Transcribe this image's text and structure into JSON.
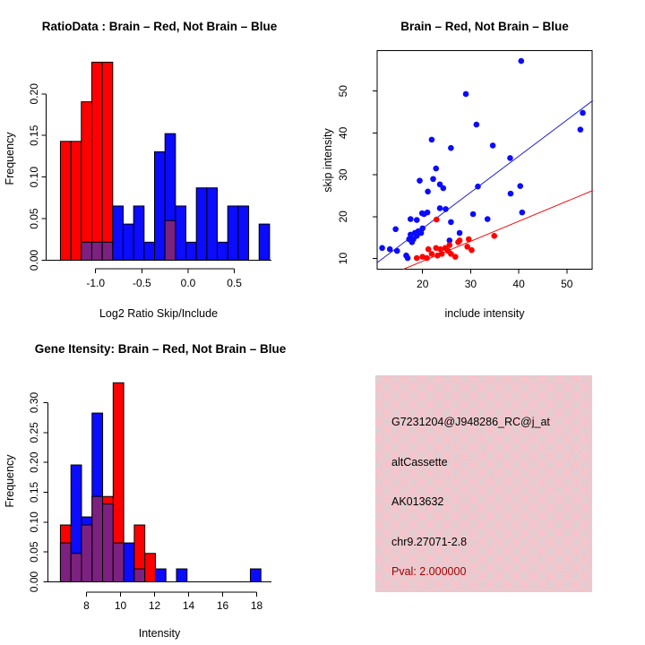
{
  "colors": {
    "red": "#ff0000",
    "blue": "#0b0bff",
    "overlap_purple": "#7c2180",
    "line_blue": "#2222cc",
    "line_red": "#ee1111",
    "bar_stroke": "#000000",
    "info_bg_pink": "#ffb6c1",
    "info_bg_gray": "#dadada",
    "pval_dark_red": "#990000"
  },
  "chart_data": [
    {
      "id": "ratio_hist",
      "type": "bar",
      "title": "RatioData : Brain – Red, Not Brain – Blue",
      "xlabel": "Log2 Ratio Skip/Include",
      "ylabel": "Frequency",
      "bin_start": -1.38,
      "bin_width": 0.113,
      "x_ticks": [
        -1.0,
        -0.5,
        0.0,
        0.5
      ],
      "x_tick_labels": [
        "-1.0",
        "-0.5",
        "0.0",
        "0.5"
      ],
      "y_ticks": [
        0.0,
        0.05,
        0.1,
        0.15,
        0.2
      ],
      "y_tick_labels": [
        "0.00",
        "0.05",
        "0.10",
        "0.15",
        "0.20"
      ],
      "ylim": [
        0,
        0.24
      ],
      "legend_note": "Brain = red histogram, Not Brain = blue histogram, overlap = purple",
      "series": [
        {
          "name": "Brain (red)",
          "color_key": "red",
          "values": [
            0.1429,
            0.1429,
            0.1905,
            0.2381,
            0.2381,
            0,
            0,
            0,
            0,
            0,
            0.0476,
            0,
            0,
            0,
            0,
            0,
            0,
            0,
            0,
            0
          ]
        },
        {
          "name": "Not Brain (blue)",
          "color_key": "blue",
          "values": [
            0,
            0,
            0.0217,
            0.0217,
            0.0217,
            0.0652,
            0.0435,
            0.0652,
            0.0217,
            0.1304,
            0.1522,
            0.0652,
            0.0217,
            0.087,
            0.087,
            0.0217,
            0.0652,
            0.0652,
            0,
            0.0435
          ]
        }
      ]
    },
    {
      "id": "scatter",
      "type": "scatter",
      "title": "Brain – Red, Not Brain – Blue",
      "xlabel": "include intensity",
      "ylabel": "skip intensity",
      "xlim": [
        10.4,
        55.4
      ],
      "ylim": [
        7.4,
        59.7
      ],
      "x_ticks": [
        20,
        30,
        40,
        50
      ],
      "x_tick_labels": [
        "20",
        "30",
        "40",
        "50"
      ],
      "y_ticks": [
        10,
        20,
        30,
        40,
        50
      ],
      "y_tick_labels": [
        "10",
        "20",
        "30",
        "40",
        "50"
      ],
      "series": [
        {
          "name": "Not Brain (blue)",
          "color_key": "blue",
          "points": [
            [
              11.6,
              12.5
            ],
            [
              13.2,
              12.2
            ],
            [
              14.4,
              17.0
            ],
            [
              14.7,
              11.8
            ],
            [
              16.6,
              10.7
            ],
            [
              16.9,
              10.1
            ],
            [
              17.2,
              14.6
            ],
            [
              17.5,
              15.7
            ],
            [
              17.5,
              19.4
            ],
            [
              17.8,
              13.9
            ],
            [
              18.1,
              14.6
            ],
            [
              18.4,
              16.1
            ],
            [
              18.8,
              15.4
            ],
            [
              18.8,
              19.2
            ],
            [
              19.1,
              16.5
            ],
            [
              19.4,
              28.6
            ],
            [
              19.7,
              16.1
            ],
            [
              19.9,
              20.8
            ],
            [
              20.0,
              17.2
            ],
            [
              20.3,
              20.6
            ],
            [
              21.0,
              21.0
            ],
            [
              21.1,
              26.0
            ],
            [
              21.9,
              38.4
            ],
            [
              22.2,
              29.0
            ],
            [
              22.8,
              31.5
            ],
            [
              23.6,
              27.7
            ],
            [
              23.6,
              22.0
            ],
            [
              24.3,
              26.8
            ],
            [
              24.8,
              21.8
            ],
            [
              25.6,
              14.3
            ],
            [
              25.9,
              36.4
            ],
            [
              25.9,
              18.7
            ],
            [
              27.7,
              16.1
            ],
            [
              29.0,
              49.3
            ],
            [
              30.5,
              20.6
            ],
            [
              31.2,
              42.0
            ],
            [
              31.5,
              27.2
            ],
            [
              33.5,
              19.4
            ],
            [
              34.6,
              37.0
            ],
            [
              38.3,
              25.5
            ],
            [
              38.2,
              34.0
            ],
            [
              40.3,
              27.3
            ],
            [
              40.5,
              57.2
            ],
            [
              40.7,
              21.0
            ],
            [
              52.8,
              40.8
            ],
            [
              53.3,
              44.8
            ]
          ]
        },
        {
          "name": "Brain (red)",
          "color_key": "red",
          "points": [
            [
              18.8,
              10.1
            ],
            [
              20.0,
              10.4
            ],
            [
              20.9,
              10.1
            ],
            [
              21.2,
              12.2
            ],
            [
              21.9,
              11.1
            ],
            [
              22.8,
              12.5
            ],
            [
              22.9,
              19.3
            ],
            [
              23.1,
              10.7
            ],
            [
              23.7,
              12.2
            ],
            [
              24.0,
              11.1
            ],
            [
              24.7,
              12.5
            ],
            [
              25.3,
              11.8
            ],
            [
              25.6,
              13.2
            ],
            [
              25.9,
              11.1
            ],
            [
              26.8,
              10.4
            ],
            [
              27.4,
              13.9
            ],
            [
              27.7,
              14.3
            ],
            [
              29.3,
              12.8
            ],
            [
              29.6,
              14.6
            ],
            [
              30.2,
              12.0
            ],
            [
              34.9,
              15.4
            ]
          ]
        }
      ],
      "lines": [
        {
          "name": "blue reference line",
          "color_key": "line_blue",
          "x1": 10.45,
          "y1": 8.9,
          "x2": 55.4,
          "y2": 47.75
        },
        {
          "name": "red reference line",
          "color_key": "line_red",
          "x1": 15.96,
          "y1": 7.4,
          "x2": 55.4,
          "y2": 26.25
        }
      ]
    },
    {
      "id": "gene_hist",
      "type": "bar",
      "title": "Gene Itensity: Brain – Red, Not Brain – Blue",
      "xlabel": "Intensity",
      "ylabel": "Frequency",
      "bin_start": 6.47,
      "bin_width": 0.62,
      "x_ticks": [
        8,
        10,
        12,
        14,
        16,
        18
      ],
      "x_tick_labels": [
        "8",
        "10",
        "12",
        "14",
        "16",
        "18"
      ],
      "y_ticks": [
        0.0,
        0.05,
        0.1,
        0.15,
        0.2,
        0.25,
        0.3
      ],
      "y_tick_labels": [
        "0.00",
        "0.05",
        "0.10",
        "0.15",
        "0.20",
        "0.25",
        "0.30"
      ],
      "ylim": [
        0,
        0.335
      ],
      "legend_note": "Brain = red histogram, Not Brain = blue histogram, overlap = purple",
      "series": [
        {
          "name": "Brain (red)",
          "color_key": "red",
          "values": [
            0.0952,
            0.0476,
            0.0952,
            0.1429,
            0.1429,
            0.3333,
            0,
            0.0952,
            0.0476,
            0,
            0,
            0,
            0,
            0,
            0,
            0,
            0,
            0,
            0
          ]
        },
        {
          "name": "Not Brain (blue)",
          "color_key": "blue",
          "values": [
            0.0652,
            0.1957,
            0.1087,
            0.2826,
            0.1304,
            0.0652,
            0.0652,
            0.0217,
            0,
            0.0217,
            0,
            0.0217,
            0,
            0,
            0,
            0,
            0,
            0,
            0.0217
          ]
        }
      ]
    }
  ],
  "info_box": {
    "probe_id": "G7231204@J948286_RC@j_at",
    "splice_type": "altCassette",
    "accession": "AK013632",
    "locus": "chr9.27071-2.8",
    "pval": "Pval: 2.000000"
  }
}
